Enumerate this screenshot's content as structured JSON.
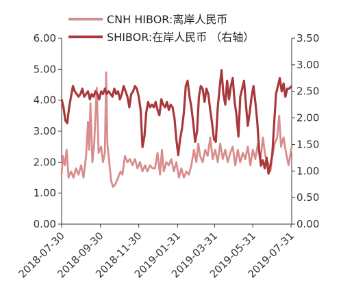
{
  "chart_data": {
    "type": "line",
    "title": "",
    "xlabel": "",
    "ylabel": "",
    "legend_position": "top",
    "grid": false,
    "x_ticks": [
      "2018-07-30",
      "2018-09-30",
      "2018-11-30",
      "2019-01-31",
      "2019-03-31",
      "2019-05-31",
      "2019-07-31"
    ],
    "x_range": [
      "2018-07-30",
      "2019-08-01"
    ],
    "y_left": {
      "ticks": [
        "0.00",
        "1.00",
        "2.00",
        "3.00",
        "4.00",
        "5.00",
        "6.00"
      ],
      "range": [
        0,
        6
      ]
    },
    "y_right": {
      "ticks": [
        "0.00",
        "0.50",
        "1.00",
        "1.50",
        "2.00",
        "2.50",
        "3.00",
        "3.50"
      ],
      "range": [
        0,
        3.5
      ]
    },
    "series": [
      {
        "name": "CNH HIBOR:离岸人民币",
        "axis": "left",
        "color": "#d98c8c",
        "points": [
          [
            "2018-07-30",
            1.6
          ],
          [
            "2018-08-01",
            2.2
          ],
          [
            "2018-08-04",
            1.9
          ],
          [
            "2018-08-07",
            2.4
          ],
          [
            "2018-08-10",
            1.5
          ],
          [
            "2018-08-14",
            1.7
          ],
          [
            "2018-08-18",
            1.5
          ],
          [
            "2018-08-22",
            1.8
          ],
          [
            "2018-08-26",
            1.6
          ],
          [
            "2018-08-30",
            1.9
          ],
          [
            "2018-09-03",
            1.5
          ],
          [
            "2018-09-07",
            2.2
          ],
          [
            "2018-09-10",
            3.3
          ],
          [
            "2018-09-12",
            2.4
          ],
          [
            "2018-09-14",
            3.9
          ],
          [
            "2018-09-17",
            2.0
          ],
          [
            "2018-09-20",
            2.6
          ],
          [
            "2018-09-24",
            4.4
          ],
          [
            "2018-09-27",
            2.3
          ],
          [
            "2018-10-01",
            2.5
          ],
          [
            "2018-10-04",
            2.0
          ],
          [
            "2018-10-07",
            2.3
          ],
          [
            "2018-10-09",
            4.9
          ],
          [
            "2018-10-11",
            2.6
          ],
          [
            "2018-10-14",
            2.0
          ],
          [
            "2018-10-17",
            1.4
          ],
          [
            "2018-10-20",
            1.2
          ],
          [
            "2018-10-24",
            1.3
          ],
          [
            "2018-10-28",
            1.5
          ],
          [
            "2018-11-01",
            1.7
          ],
          [
            "2018-11-04",
            1.6
          ],
          [
            "2018-11-08",
            2.2
          ],
          [
            "2018-11-12",
            2.0
          ],
          [
            "2018-11-16",
            2.1
          ],
          [
            "2018-11-20",
            1.9
          ],
          [
            "2018-11-24",
            2.1
          ],
          [
            "2018-11-28",
            1.8
          ],
          [
            "2018-12-02",
            2.0
          ],
          [
            "2018-12-06",
            1.7
          ],
          [
            "2018-12-10",
            1.9
          ],
          [
            "2018-12-14",
            1.7
          ],
          [
            "2018-12-18",
            1.9
          ],
          [
            "2018-12-22",
            1.8
          ],
          [
            "2018-12-26",
            1.8
          ],
          [
            "2018-12-30",
            2.3
          ],
          [
            "2019-01-03",
            1.6
          ],
          [
            "2019-01-06",
            2.4
          ],
          [
            "2019-01-09",
            1.7
          ],
          [
            "2019-01-13",
            2.0
          ],
          [
            "2019-01-17",
            1.9
          ],
          [
            "2019-01-21",
            2.1
          ],
          [
            "2019-01-25",
            1.7
          ],
          [
            "2019-01-29",
            2.0
          ],
          [
            "2019-02-02",
            1.5
          ],
          [
            "2019-02-06",
            1.8
          ],
          [
            "2019-02-10",
            1.5
          ],
          [
            "2019-02-14",
            1.7
          ],
          [
            "2019-02-18",
            1.6
          ],
          [
            "2019-02-22",
            1.9
          ],
          [
            "2019-02-26",
            2.4
          ],
          [
            "2019-03-02",
            2.0
          ],
          [
            "2019-03-05",
            2.6
          ],
          [
            "2019-03-08",
            2.2
          ],
          [
            "2019-03-12",
            2.0
          ],
          [
            "2019-03-16",
            2.4
          ],
          [
            "2019-03-20",
            2.2
          ],
          [
            "2019-03-24",
            2.8
          ],
          [
            "2019-03-28",
            2.1
          ],
          [
            "2019-04-01",
            2.4
          ],
          [
            "2019-04-05",
            2.0
          ],
          [
            "2019-04-09",
            2.6
          ],
          [
            "2019-04-13",
            2.1
          ],
          [
            "2019-04-17",
            2.4
          ],
          [
            "2019-04-21",
            2.0
          ],
          [
            "2019-04-25",
            2.3
          ],
          [
            "2019-04-29",
            2.5
          ],
          [
            "2019-05-03",
            1.9
          ],
          [
            "2019-05-07",
            2.4
          ],
          [
            "2019-05-11",
            2.0
          ],
          [
            "2019-05-15",
            2.3
          ],
          [
            "2019-05-19",
            2.1
          ],
          [
            "2019-05-23",
            2.5
          ],
          [
            "2019-05-27",
            1.9
          ],
          [
            "2019-05-31",
            2.4
          ],
          [
            "2019-06-04",
            2.1
          ],
          [
            "2019-06-08",
            2.6
          ],
          [
            "2019-06-12",
            2.0
          ],
          [
            "2019-06-16",
            2.8
          ],
          [
            "2019-06-20",
            2.2
          ],
          [
            "2019-06-24",
            2.0
          ],
          [
            "2019-06-28",
            1.7
          ],
          [
            "2019-07-01",
            2.2
          ],
          [
            "2019-07-05",
            2.6
          ],
          [
            "2019-07-09",
            2.8
          ],
          [
            "2019-07-12",
            3.5
          ],
          [
            "2019-07-15",
            2.5
          ],
          [
            "2019-07-19",
            2.8
          ],
          [
            "2019-07-23",
            2.3
          ],
          [
            "2019-07-27",
            1.9
          ],
          [
            "2019-08-01",
            2.5
          ]
        ]
      },
      {
        "name": "SHIBOR:在岸人民币 （右轴）",
        "axis": "right",
        "color": "#a8383b",
        "points": [
          [
            "2018-07-30",
            2.35
          ],
          [
            "2018-08-02",
            2.2
          ],
          [
            "2018-08-05",
            1.95
          ],
          [
            "2018-08-08",
            1.9
          ],
          [
            "2018-08-11",
            2.2
          ],
          [
            "2018-08-14",
            2.4
          ],
          [
            "2018-08-17",
            2.6
          ],
          [
            "2018-08-20",
            2.5
          ],
          [
            "2018-08-23",
            2.45
          ],
          [
            "2018-08-26",
            2.4
          ],
          [
            "2018-08-29",
            2.45
          ],
          [
            "2018-09-01",
            2.55
          ],
          [
            "2018-09-04",
            2.4
          ],
          [
            "2018-09-07",
            2.45
          ],
          [
            "2018-09-10",
            2.5
          ],
          [
            "2018-09-13",
            2.35
          ],
          [
            "2018-09-16",
            2.45
          ],
          [
            "2018-09-19",
            2.4
          ],
          [
            "2018-09-22",
            2.5
          ],
          [
            "2018-09-25",
            2.45
          ],
          [
            "2018-09-28",
            2.35
          ],
          [
            "2018-10-01",
            2.5
          ],
          [
            "2018-10-04",
            2.45
          ],
          [
            "2018-10-07",
            2.55
          ],
          [
            "2018-10-10",
            2.45
          ],
          [
            "2018-10-13",
            2.5
          ],
          [
            "2018-10-16",
            2.45
          ],
          [
            "2018-10-19",
            2.4
          ],
          [
            "2018-10-22",
            2.55
          ],
          [
            "2018-10-25",
            2.45
          ],
          [
            "2018-10-28",
            2.5
          ],
          [
            "2018-10-31",
            2.35
          ],
          [
            "2018-11-03",
            2.45
          ],
          [
            "2018-11-06",
            2.6
          ],
          [
            "2018-11-09",
            2.5
          ],
          [
            "2018-11-12",
            2.4
          ],
          [
            "2018-11-15",
            2.2
          ],
          [
            "2018-11-18",
            2.45
          ],
          [
            "2018-11-21",
            2.5
          ],
          [
            "2018-11-24",
            2.6
          ],
          [
            "2018-11-27",
            2.55
          ],
          [
            "2018-11-30",
            2.4
          ],
          [
            "2018-12-03",
            2.15
          ],
          [
            "2018-12-06",
            1.45
          ],
          [
            "2018-12-09",
            1.65
          ],
          [
            "2018-12-12",
            2.1
          ],
          [
            "2018-12-15",
            2.3
          ],
          [
            "2018-12-18",
            2.2
          ],
          [
            "2018-12-21",
            2.25
          ],
          [
            "2018-12-24",
            2.2
          ],
          [
            "2018-12-27",
            2.3
          ],
          [
            "2018-12-30",
            2.15
          ],
          [
            "2019-01-02",
            2.05
          ],
          [
            "2019-01-05",
            2.35
          ],
          [
            "2019-01-08",
            2.25
          ],
          [
            "2019-01-11",
            2.2
          ],
          [
            "2019-01-14",
            2.3
          ],
          [
            "2019-01-17",
            2.15
          ],
          [
            "2019-01-20",
            2.25
          ],
          [
            "2019-01-23",
            2.2
          ],
          [
            "2019-01-26",
            2.0
          ],
          [
            "2019-01-29",
            1.6
          ],
          [
            "2019-02-01",
            1.3
          ],
          [
            "2019-02-04",
            1.6
          ],
          [
            "2019-02-07",
            1.8
          ],
          [
            "2019-02-10",
            2.1
          ],
          [
            "2019-02-13",
            2.6
          ],
          [
            "2019-02-16",
            2.7
          ],
          [
            "2019-02-19",
            2.4
          ],
          [
            "2019-02-22",
            2.2
          ],
          [
            "2019-02-25",
            1.9
          ],
          [
            "2019-02-28",
            1.55
          ],
          [
            "2019-03-03",
            1.75
          ],
          [
            "2019-03-06",
            2.4
          ],
          [
            "2019-03-09",
            2.6
          ],
          [
            "2019-03-12",
            2.55
          ],
          [
            "2019-03-15",
            2.3
          ],
          [
            "2019-03-18",
            2.55
          ],
          [
            "2019-03-21",
            2.45
          ],
          [
            "2019-03-24",
            2.15
          ],
          [
            "2019-03-27",
            1.9
          ],
          [
            "2019-03-30",
            1.6
          ],
          [
            "2019-04-02",
            1.55
          ],
          [
            "2019-04-05",
            2.2
          ],
          [
            "2019-04-08",
            2.55
          ],
          [
            "2019-04-11",
            2.9
          ],
          [
            "2019-04-14",
            2.45
          ],
          [
            "2019-04-17",
            2.25
          ],
          [
            "2019-04-20",
            2.7
          ],
          [
            "2019-04-23",
            2.35
          ],
          [
            "2019-04-26",
            2.6
          ],
          [
            "2019-04-29",
            2.75
          ],
          [
            "2019-05-02",
            2.3
          ],
          [
            "2019-05-05",
            2.05
          ],
          [
            "2019-05-08",
            1.65
          ],
          [
            "2019-05-11",
            2.4
          ],
          [
            "2019-05-14",
            2.55
          ],
          [
            "2019-05-17",
            2.7
          ],
          [
            "2019-05-20",
            2.25
          ],
          [
            "2019-05-23",
            1.85
          ],
          [
            "2019-05-26",
            2.1
          ],
          [
            "2019-05-29",
            2.4
          ],
          [
            "2019-06-01",
            2.6
          ],
          [
            "2019-06-04",
            2.3
          ],
          [
            "2019-06-07",
            1.95
          ],
          [
            "2019-06-10",
            1.4
          ],
          [
            "2019-06-13",
            1.1
          ],
          [
            "2019-06-16",
            1.2
          ],
          [
            "2019-06-19",
            1.05
          ],
          [
            "2019-06-22",
            1.25
          ],
          [
            "2019-06-25",
            0.95
          ],
          [
            "2019-06-28",
            1.1
          ],
          [
            "2019-07-01",
            1.3
          ],
          [
            "2019-07-04",
            1.9
          ],
          [
            "2019-07-07",
            2.45
          ],
          [
            "2019-07-10",
            2.6
          ],
          [
            "2019-07-13",
            2.75
          ],
          [
            "2019-07-16",
            2.5
          ],
          [
            "2019-07-19",
            2.65
          ],
          [
            "2019-07-22",
            2.4
          ],
          [
            "2019-07-25",
            2.55
          ],
          [
            "2019-07-28",
            2.55
          ],
          [
            "2019-08-01",
            2.6
          ]
        ]
      }
    ]
  }
}
